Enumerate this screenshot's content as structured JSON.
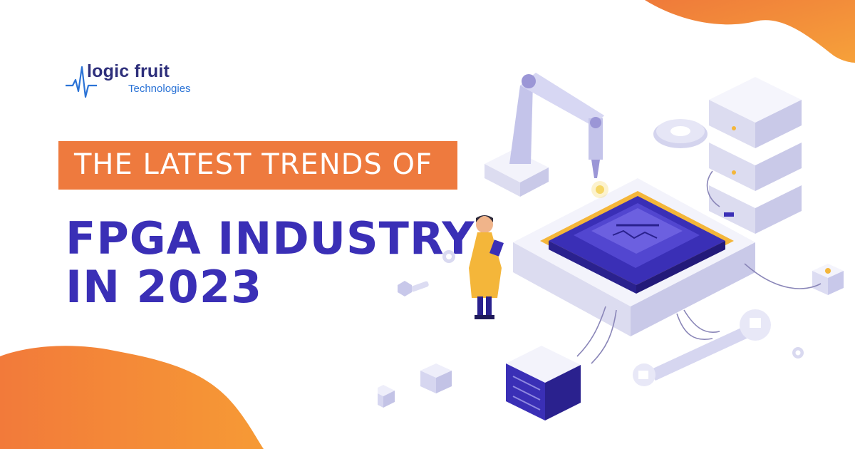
{
  "logo": {
    "name": "logic fruit",
    "subtitle": "Technologies"
  },
  "banner": {
    "text": "THE LATEST TRENDS OF"
  },
  "headline": {
    "line1": "FPGA INDUSTRY",
    "line2": "IN 2023"
  },
  "colors": {
    "orange": "#ee7a3e",
    "indigo": "#3a2fb6",
    "logo_navy": "#2e2f7b",
    "logo_blue": "#2b73d6"
  },
  "illustration": {
    "subject": "isometric FPGA chip with robotic arm, servers, engineer, wrench and gear"
  }
}
